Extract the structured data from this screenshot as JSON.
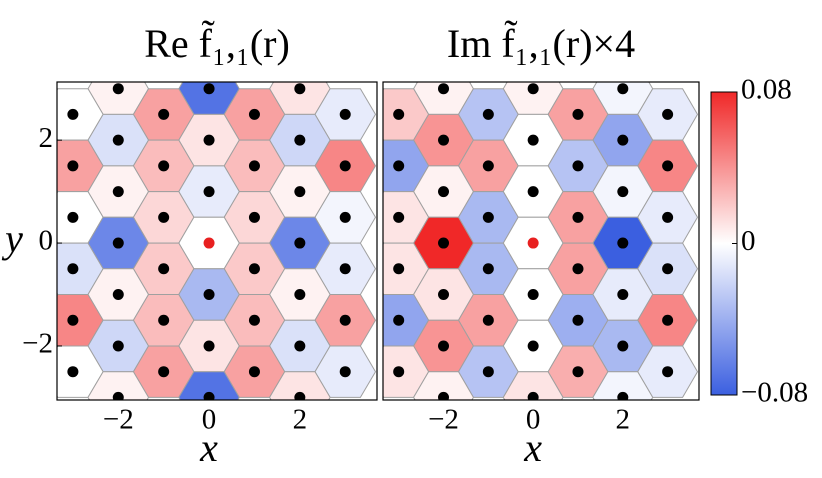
{
  "chart_data": [
    {
      "type": "heatmap",
      "title": "Re f̃₁,₁(r)",
      "xlabel": "x",
      "ylabel": "y",
      "xlim": [
        -3.35,
        3.7
      ],
      "ylim": [
        -3.05,
        3.13
      ],
      "xticks": [
        {
          "value": -2,
          "label": "−2"
        },
        0,
        2
      ],
      "yticks": [
        {
          "value": -2,
          "label": "−2"
        },
        0,
        2
      ],
      "clim": [
        -0.08,
        0.08
      ],
      "cmap": [
        "#3b5fe0",
        "#ffffff",
        "#f02828"
      ],
      "marker_color": "#000000",
      "center_marker_color": "#e82020",
      "edge_color": "#a0a0a0",
      "x": [
        -2,
        0,
        2,
        -3,
        -1,
        1,
        3,
        -2,
        0,
        2,
        -3,
        -1,
        1,
        3,
        -2,
        0,
        2,
        -3,
        -1,
        1,
        3,
        -2,
        0,
        2,
        -3,
        -1,
        1,
        3,
        -2,
        0,
        2,
        -3,
        -1,
        1,
        3,
        -2,
        0,
        2,
        -3,
        -1,
        1,
        3,
        -2,
        0,
        2
      ],
      "y": [
        3,
        3,
        3,
        2.5,
        2.5,
        2.5,
        2.5,
        2,
        2,
        2,
        1.5,
        1.5,
        1.5,
        1.5,
        1,
        1,
        1,
        0.5,
        0.5,
        0.5,
        0.5,
        0,
        0,
        0,
        -0.5,
        -0.5,
        -0.5,
        -0.5,
        -1,
        -1,
        -1,
        -1.5,
        -1.5,
        -1.5,
        -1.5,
        -2,
        -2,
        -2,
        -2.5,
        -2.5,
        -2.5,
        -2.5,
        -3,
        -3,
        -3
      ],
      "values": [
        0.005,
        -0.07,
        0.01,
        0.0,
        0.035,
        0.035,
        -0.01,
        -0.015,
        0.01,
        -0.02,
        0.035,
        0.025,
        0.025,
        0.045,
        0.005,
        -0.01,
        0.005,
        0.0,
        0.015,
        0.015,
        -0.005,
        -0.06,
        0.0,
        -0.06,
        -0.015,
        0.02,
        0.02,
        -0.01,
        0.005,
        -0.035,
        0.005,
        0.045,
        0.025,
        0.025,
        0.035,
        -0.02,
        0.01,
        -0.015,
        0.0,
        0.035,
        0.035,
        -0.01,
        0.005,
        -0.07,
        0.01
      ]
    },
    {
      "type": "heatmap",
      "title": "Im f̃₁,₁(r)×4",
      "xlabel": "x",
      "xlim": [
        -3.35,
        3.7
      ],
      "ylim": [
        -3.05,
        3.13
      ],
      "xticks": [
        {
          "value": -2,
          "label": "−2"
        },
        0,
        2
      ],
      "clim": [
        -0.08,
        0.08
      ],
      "cmap": [
        "#3b5fe0",
        "#ffffff",
        "#f02828"
      ],
      "marker_color": "#000000",
      "center_marker_color": "#e82020",
      "edge_color": "#a0a0a0",
      "colorbar_ticks": [
        {
          "value": 0.08,
          "label": "0.08"
        },
        0,
        {
          "value": -0.08,
          "label": "−0.08"
        }
      ],
      "x": [
        -2,
        0,
        2,
        -3,
        -1,
        1,
        3,
        -2,
        0,
        2,
        -3,
        -1,
        1,
        3,
        -2,
        0,
        2,
        -3,
        -1,
        1,
        3,
        -2,
        0,
        2,
        -3,
        -1,
        1,
        3,
        -2,
        0,
        2,
        -3,
        -1,
        1,
        3,
        -2,
        0,
        2,
        -3,
        -1,
        1,
        3,
        -2,
        0,
        2
      ],
      "y": [
        3,
        3,
        3,
        2.5,
        2.5,
        2.5,
        2.5,
        2,
        2,
        2,
        1.5,
        1.5,
        1.5,
        1.5,
        1,
        1,
        1,
        0.5,
        0.5,
        0.5,
        0.5,
        0,
        0,
        0,
        -0.5,
        -0.5,
        -0.5,
        -0.5,
        -1,
        -1,
        -1,
        -1.5,
        -1.5,
        -1.5,
        -1.5,
        -2,
        -2,
        -2,
        -2.5,
        -2.5,
        -2.5,
        -2.5,
        -3,
        -3,
        -3
      ],
      "values": [
        0.005,
        0.005,
        -0.005,
        0.02,
        -0.03,
        0.035,
        -0.01,
        0.04,
        0.0,
        -0.045,
        -0.045,
        0.035,
        -0.03,
        0.045,
        0.005,
        0.0,
        -0.005,
        0.01,
        -0.035,
        0.035,
        -0.01,
        0.08,
        0.0,
        -0.08,
        0.01,
        -0.035,
        0.035,
        -0.015,
        0.01,
        0.0,
        -0.01,
        -0.045,
        0.035,
        -0.04,
        0.045,
        0.04,
        0.0,
        -0.035,
        0.01,
        -0.03,
        0.03,
        -0.01,
        0.005,
        0.01,
        -0.005
      ]
    }
  ]
}
